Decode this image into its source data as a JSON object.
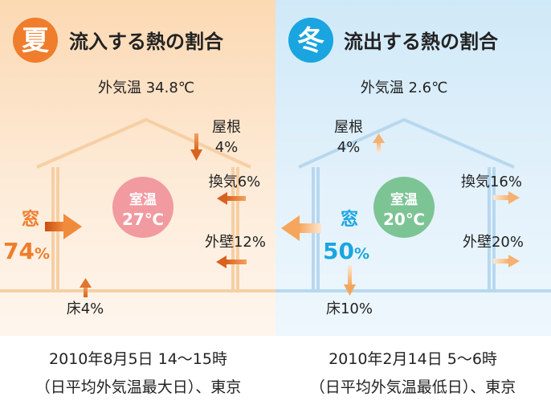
{
  "colors": {
    "summer_accent": "#ef7d2c",
    "winter_accent": "#1aa5e0",
    "summer_room": "#f19aa0",
    "winter_room": "#7cc494",
    "summer_house": "#f6cfa4",
    "winter_house": "#b7d8ef"
  },
  "summer": {
    "season_char": "夏",
    "title": "流入する熱の割合",
    "outdoor_temp": "外気温 34.8℃",
    "room_label": "室温",
    "room_temp": "27℃",
    "roof_name": "屋根",
    "roof_pct": "4%",
    "vent": "換気6%",
    "window_name": "窓",
    "window_num": "74",
    "window_unit": "%",
    "wall": "外壁12%",
    "floor": "床4%",
    "caption_line1": "2010年8月5日 14～15時",
    "caption_line2": "（日平均外気温最大日）、東京"
  },
  "winter": {
    "season_char": "冬",
    "title": "流出する熱の割合",
    "outdoor_temp": "外気温 2.6℃",
    "room_label": "室温",
    "room_temp": "20℃",
    "roof_name": "屋根",
    "roof_pct": "4%",
    "vent": "換気16%",
    "window_name": "窓",
    "window_num": "50",
    "window_unit": "%",
    "wall": "外壁20%",
    "floor": "床10%",
    "caption_line1": "2010年2月14日 5～6時",
    "caption_line2": "（日平均外気温最低日）、東京"
  }
}
